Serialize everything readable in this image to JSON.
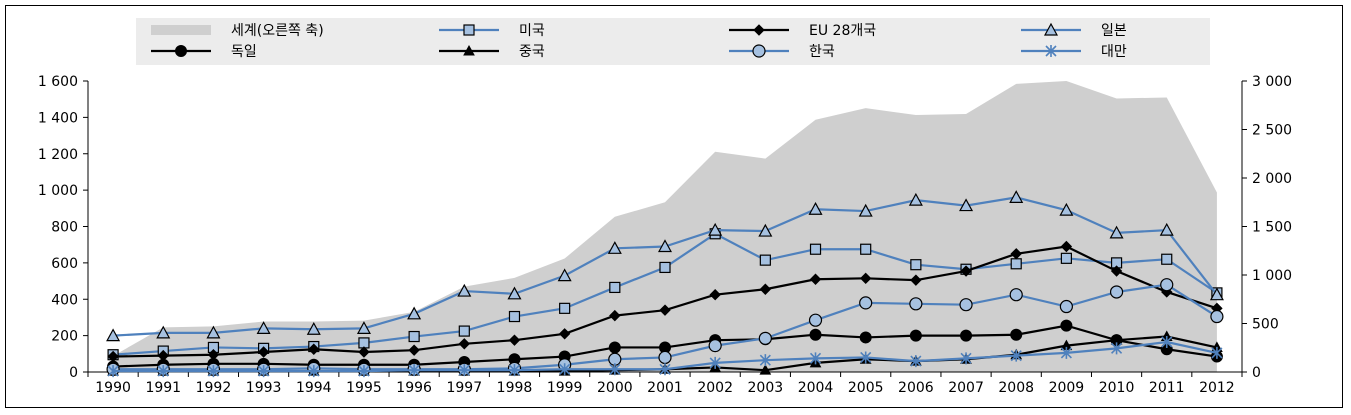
{
  "chart_data": {
    "type": "line",
    "x": [
      1990,
      1991,
      1992,
      1993,
      1994,
      1995,
      1996,
      1997,
      1998,
      1999,
      2000,
      2001,
      2002,
      2003,
      2004,
      2005,
      2006,
      2007,
      2008,
      2009,
      2010,
      2011,
      2012
    ],
    "y_left": {
      "ylim": [
        0,
        1600
      ],
      "ticks": [
        0,
        200,
        400,
        600,
        800,
        1000,
        1200,
        1400,
        1600
      ],
      "tick_labels": [
        "0",
        "200",
        "400",
        "600",
        "800",
        "1 000",
        "1 200",
        "1 400",
        "1 600"
      ]
    },
    "y_right": {
      "ylim": [
        0,
        3000
      ],
      "ticks": [
        0,
        500,
        1000,
        1500,
        2000,
        2500,
        3000
      ],
      "tick_labels": [
        "0",
        "500",
        "1 000",
        "1 500",
        "2 000",
        "2 500",
        "3 000"
      ]
    },
    "area": {
      "name": "세계(오른쪽 축)",
      "axis": "right",
      "color": "#cfcfcf",
      "values": [
        165,
        460,
        470,
        520,
        520,
        530,
        620,
        880,
        970,
        1170,
        1600,
        1750,
        2270,
        2200,
        2600,
        2720,
        2650,
        2660,
        2970,
        3000,
        2820,
        2830,
        1850
      ]
    },
    "series": [
      {
        "name": "미국",
        "marker": "square",
        "color": "#4f81bd",
        "values": [
          95,
          115,
          135,
          130,
          140,
          160,
          195,
          225,
          305,
          350,
          465,
          575,
          760,
          615,
          675,
          675,
          590,
          565,
          595,
          625,
          600,
          620,
          435
        ]
      },
      {
        "name": "EU 28개국",
        "marker": "diamond",
        "color": "#000000",
        "values": [
          85,
          90,
          95,
          110,
          125,
          110,
          120,
          155,
          175,
          210,
          310,
          340,
          425,
          455,
          510,
          515,
          505,
          555,
          650,
          690,
          555,
          440,
          350
        ]
      },
      {
        "name": "일본",
        "marker": "triangle-open",
        "color": "#4f81bd",
        "values": [
          200,
          215,
          215,
          240,
          235,
          240,
          320,
          445,
          430,
          530,
          680,
          690,
          780,
          775,
          895,
          885,
          945,
          915,
          960,
          890,
          765,
          780,
          425
        ]
      },
      {
        "name": "독일",
        "marker": "circle",
        "color": "#000000",
        "values": [
          30,
          40,
          45,
          45,
          40,
          40,
          40,
          55,
          70,
          85,
          135,
          135,
          175,
          180,
          205,
          190,
          200,
          200,
          205,
          255,
          175,
          125,
          85
        ]
      },
      {
        "name": "중국",
        "marker": "triangle",
        "color": "#000000",
        "values": [
          5,
          5,
          5,
          5,
          5,
          5,
          5,
          5,
          5,
          5,
          10,
          15,
          25,
          10,
          50,
          70,
          60,
          70,
          95,
          145,
          175,
          195,
          135
        ]
      },
      {
        "name": "한국",
        "marker": "circle-open",
        "color": "#4f81bd",
        "values": [
          15,
          15,
          15,
          15,
          20,
          15,
          15,
          15,
          20,
          40,
          70,
          80,
          145,
          185,
          285,
          380,
          375,
          370,
          425,
          360,
          440,
          480,
          305
        ]
      },
      {
        "name": "대만",
        "marker": "star",
        "color": "#4f81bd",
        "values": [
          5,
          5,
          5,
          5,
          5,
          5,
          10,
          10,
          10,
          15,
          15,
          15,
          50,
          65,
          75,
          80,
          60,
          75,
          90,
          105,
          130,
          165,
          105
        ]
      }
    ],
    "legend": {
      "placement": "top",
      "entries": [
        {
          "label": "세계(오른쪽 축)",
          "ref": "area"
        },
        {
          "label": "미국",
          "ref": "미국"
        },
        {
          "label": "EU 28개국",
          "ref": "EU 28개국"
        },
        {
          "label": "일본",
          "ref": "일본"
        },
        {
          "label": "독일",
          "ref": "독일"
        },
        {
          "label": "중국",
          "ref": "중국"
        },
        {
          "label": "한국",
          "ref": "한국"
        },
        {
          "label": "대만",
          "ref": "대만"
        }
      ]
    },
    "grid": false
  }
}
